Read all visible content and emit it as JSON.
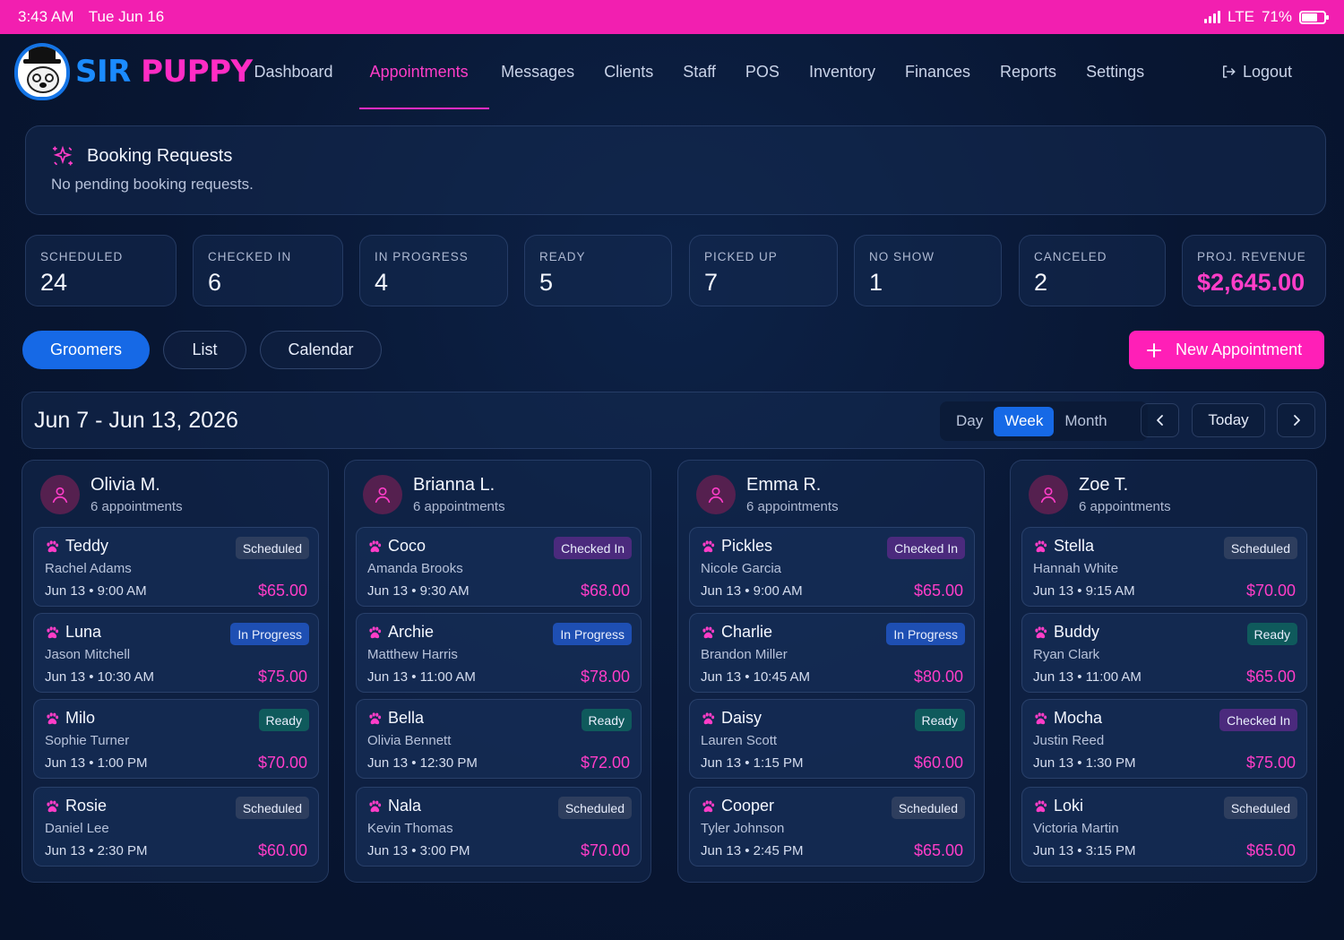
{
  "status_bar": {
    "time": "3:43 AM",
    "date": "Tue Jun 16",
    "network": "LTE",
    "battery": "71%",
    "battery_level": 0.71
  },
  "brand": {
    "part1": "SIR",
    "part2": "PUPPY"
  },
  "nav": {
    "items": [
      {
        "label": "Dashboard",
        "active": false
      },
      {
        "label": "Appointments",
        "active": true
      },
      {
        "label": "Messages",
        "active": false
      },
      {
        "label": "Clients",
        "active": false
      },
      {
        "label": "Staff",
        "active": false
      },
      {
        "label": "POS",
        "active": false
      },
      {
        "label": "Inventory",
        "active": false
      },
      {
        "label": "Finances",
        "active": false
      },
      {
        "label": "Reports",
        "active": false
      },
      {
        "label": "Settings",
        "active": false
      }
    ],
    "logout": "Logout"
  },
  "booking": {
    "title": "Booking Requests",
    "message": "No pending booking requests."
  },
  "stats": [
    {
      "label": "SCHEDULED",
      "value": "24"
    },
    {
      "label": "CHECKED IN",
      "value": "6"
    },
    {
      "label": "IN PROGRESS",
      "value": "4"
    },
    {
      "label": "READY",
      "value": "5"
    },
    {
      "label": "PICKED UP",
      "value": "7"
    },
    {
      "label": "NO SHOW",
      "value": "1"
    },
    {
      "label": "CANCELED",
      "value": "2"
    },
    {
      "label": "PROJ. REVENUE",
      "value": "$2,645.00"
    }
  ],
  "views": {
    "groomers": "Groomers",
    "list": "List",
    "calendar": "Calendar",
    "active": "Groomers"
  },
  "new_appointment": "New Appointment",
  "range": {
    "title": "Jun 7 - Jun 13, 2026",
    "modes": [
      "Day",
      "Week",
      "Month"
    ],
    "active_mode": "Week",
    "today": "Today"
  },
  "colors": {
    "accent_pink": "#ff1fb7",
    "accent_blue": "#1669e6",
    "status_scheduled": "#2e3e5e",
    "status_checked_in": "#4b2a7d",
    "status_in_progress": "#1e4fb3",
    "status_ready": "#0f5a5c"
  },
  "groomers": [
    {
      "name": "Olivia M.",
      "count": "6 appointments",
      "appointments": [
        {
          "pet": "Teddy",
          "owner": "Rachel Adams",
          "when": "Jun 13 • 9:00 AM",
          "price": "$65.00",
          "status": "Scheduled",
          "kind": "scheduled"
        },
        {
          "pet": "Luna",
          "owner": "Jason Mitchell",
          "when": "Jun 13 • 10:30 AM",
          "price": "$75.00",
          "status": "In Progress",
          "kind": "progress"
        },
        {
          "pet": "Milo",
          "owner": "Sophie Turner",
          "when": "Jun 13 • 1:00 PM",
          "price": "$70.00",
          "status": "Ready",
          "kind": "ready"
        },
        {
          "pet": "Rosie",
          "owner": "Daniel Lee",
          "when": "Jun 13 • 2:30 PM",
          "price": "$60.00",
          "status": "Scheduled",
          "kind": "scheduled"
        }
      ]
    },
    {
      "name": "Brianna L.",
      "count": "6 appointments",
      "appointments": [
        {
          "pet": "Coco",
          "owner": "Amanda Brooks",
          "when": "Jun 13 • 9:30 AM",
          "price": "$68.00",
          "status": "Checked In",
          "kind": "checked"
        },
        {
          "pet": "Archie",
          "owner": "Matthew Harris",
          "when": "Jun 13 • 11:00 AM",
          "price": "$78.00",
          "status": "In Progress",
          "kind": "progress"
        },
        {
          "pet": "Bella",
          "owner": "Olivia Bennett",
          "when": "Jun 13 • 12:30 PM",
          "price": "$72.00",
          "status": "Ready",
          "kind": "ready"
        },
        {
          "pet": "Nala",
          "owner": "Kevin Thomas",
          "when": "Jun 13 • 3:00 PM",
          "price": "$70.00",
          "status": "Scheduled",
          "kind": "scheduled"
        }
      ]
    },
    {
      "name": "Emma R.",
      "count": "6 appointments",
      "appointments": [
        {
          "pet": "Pickles",
          "owner": "Nicole Garcia",
          "when": "Jun 13 • 9:00 AM",
          "price": "$65.00",
          "status": "Checked In",
          "kind": "checked"
        },
        {
          "pet": "Charlie",
          "owner": "Brandon Miller",
          "when": "Jun 13 • 10:45 AM",
          "price": "$80.00",
          "status": "In Progress",
          "kind": "progress"
        },
        {
          "pet": "Daisy",
          "owner": "Lauren Scott",
          "when": "Jun 13 • 1:15 PM",
          "price": "$60.00",
          "status": "Ready",
          "kind": "ready"
        },
        {
          "pet": "Cooper",
          "owner": "Tyler Johnson",
          "when": "Jun 13 • 2:45 PM",
          "price": "$65.00",
          "status": "Scheduled",
          "kind": "scheduled"
        }
      ]
    },
    {
      "name": "Zoe T.",
      "count": "6 appointments",
      "appointments": [
        {
          "pet": "Stella",
          "owner": "Hannah White",
          "when": "Jun 13 • 9:15 AM",
          "price": "$70.00",
          "status": "Scheduled",
          "kind": "scheduled"
        },
        {
          "pet": "Buddy",
          "owner": "Ryan Clark",
          "when": "Jun 13 • 11:00 AM",
          "price": "$65.00",
          "status": "Ready",
          "kind": "ready"
        },
        {
          "pet": "Mocha",
          "owner": "Justin Reed",
          "when": "Jun 13 • 1:30 PM",
          "price": "$75.00",
          "status": "Checked In",
          "kind": "checked"
        },
        {
          "pet": "Loki",
          "owner": "Victoria Martin",
          "when": "Jun 13 • 3:15 PM",
          "price": "$65.00",
          "status": "Scheduled",
          "kind": "scheduled"
        }
      ]
    }
  ]
}
